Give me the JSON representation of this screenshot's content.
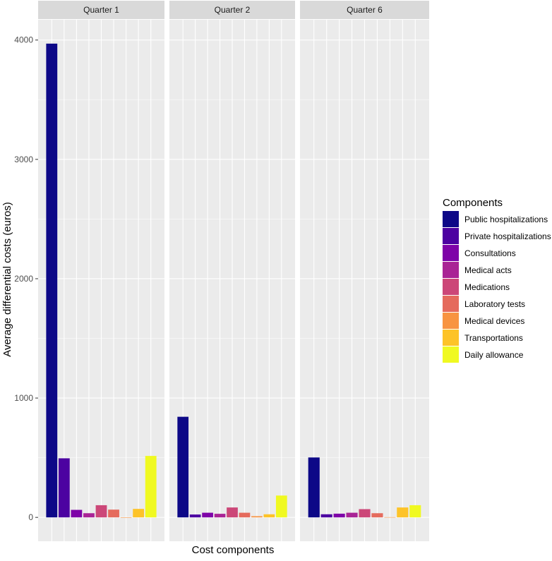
{
  "chart_data": {
    "type": "bar",
    "facet_by": "quarter",
    "panels": [
      "Quarter 1",
      "Quarter 2",
      "Quarter 6"
    ],
    "categories": [
      "Public hospitalizations",
      "Private hospitalizations",
      "Consultations",
      "Medical acts",
      "Medications",
      "Laboratory tests",
      "Medical devices",
      "Transportations",
      "Daily allowance"
    ],
    "colors": [
      "#0D0887",
      "#4C02A1",
      "#7E03A8",
      "#A92395",
      "#CC4778",
      "#E56B5D",
      "#F89441",
      "#FDC328",
      "#F0F921"
    ],
    "series": [
      {
        "name": "Quarter 1",
        "values": [
          3970,
          495,
          63,
          35,
          102,
          65,
          0,
          71,
          515
        ]
      },
      {
        "name": "Quarter 2",
        "values": [
          843,
          24,
          39,
          30,
          83,
          39,
          10,
          26,
          183
        ]
      },
      {
        "name": "Quarter 6",
        "values": [
          502,
          26,
          31,
          39,
          69,
          35,
          2,
          83,
          102
        ]
      }
    ],
    "xlabel": "Cost components",
    "ylabel": "Average differential costs (euros)",
    "yticks": [
      0,
      1000,
      2000,
      3000,
      4000
    ],
    "ylim": [
      -200,
      4170
    ],
    "grid": true,
    "legend": {
      "title": "Components",
      "position": "right"
    }
  }
}
